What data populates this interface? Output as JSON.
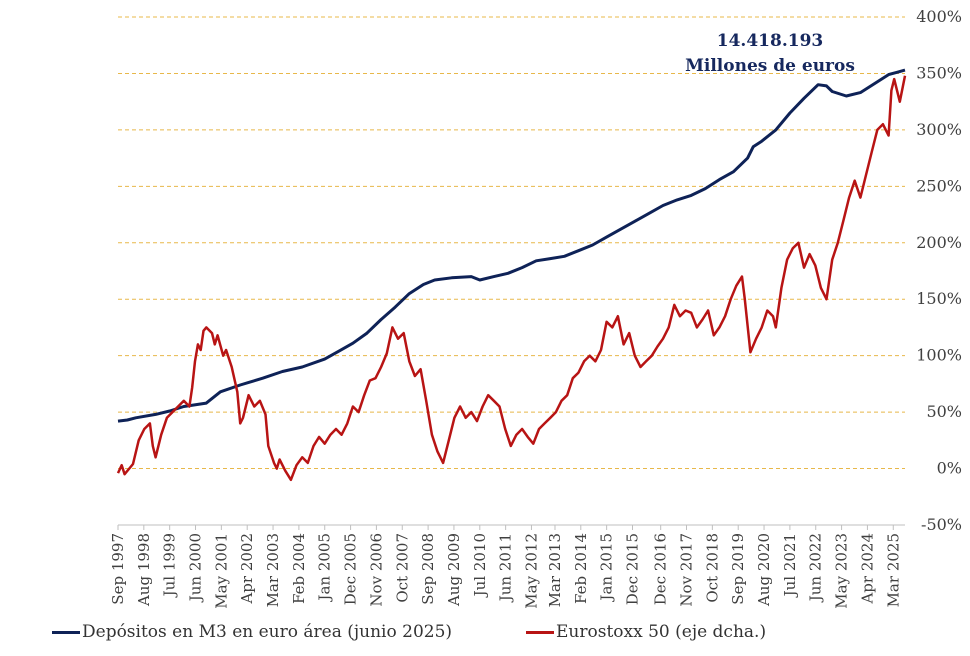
{
  "chart_data": {
    "type": "line",
    "title": "",
    "right_axis": {
      "ylim": [
        -50,
        400
      ],
      "ticks": [
        -50,
        0,
        50,
        100,
        150,
        200,
        250,
        300,
        350,
        400
      ],
      "tick_labels": [
        "-50%",
        "0%",
        "50%",
        "100%",
        "150%",
        "200%",
        "250%",
        "300%",
        "350%",
        "400%"
      ],
      "gridlines": true
    },
    "x": {
      "range": [
        1997.667,
        2025.583
      ],
      "tick_positions": [
        1997.667,
        1998.583,
        1999.5,
        2000.417,
        2001.333,
        2002.25,
        2003.167,
        2004.083,
        2005.0,
        2005.917,
        2006.833,
        2007.75,
        2008.667,
        2009.583,
        2010.5,
        2011.417,
        2012.333,
        2013.167,
        2014.083,
        2015.0,
        2015.917,
        2016.917,
        2017.833,
        2018.75,
        2019.667,
        2020.583,
        2021.5,
        2022.417,
        2023.333,
        2024.25,
        2025.167
      ],
      "tick_labels": [
        "Sep 1997",
        "Aug 1998",
        "Jul 1999",
        "Jun 2000",
        "May 2001",
        "Apr 2002",
        "Mar 2003",
        "Feb 2004",
        "Jan 2005",
        "Dec 2005",
        "Nov 2006",
        "Oct 2007",
        "Sep 2008",
        "Aug 2009",
        "Jul 2010",
        "Jun 2011",
        "May 2012",
        "Mar 2013",
        "Feb 2014",
        "Jan 2015",
        "Dec 2015",
        "Dec 2016",
        "Nov 2017",
        "Oct 2018",
        "Sep 2019",
        "Aug 2020",
        "Jul 2021",
        "Jun 2022",
        "May 2023",
        "Apr 2024",
        "Mar 2025"
      ]
    },
    "series": [
      {
        "name": "Depósitos en M3 en euro área (junio 2025)",
        "color": "#0e2257",
        "axis": "left (unlabeled)",
        "points": [
          [
            1997.667,
            42
          ],
          [
            1998.0,
            43
          ],
          [
            1998.3,
            45
          ],
          [
            1999.0,
            48
          ],
          [
            1999.5,
            51
          ],
          [
            2000.0,
            55
          ],
          [
            2000.8,
            58
          ],
          [
            2001.3,
            68
          ],
          [
            2002.0,
            74
          ],
          [
            2002.8,
            80
          ],
          [
            2003.5,
            86
          ],
          [
            2004.2,
            90
          ],
          [
            2005.0,
            97
          ],
          [
            2005.5,
            104
          ],
          [
            2006.0,
            111
          ],
          [
            2006.5,
            120
          ],
          [
            2007.0,
            132
          ],
          [
            2007.5,
            143
          ],
          [
            2008.0,
            155
          ],
          [
            2008.5,
            163
          ],
          [
            2008.9,
            167
          ],
          [
            2009.5,
            169
          ],
          [
            2010.2,
            170
          ],
          [
            2010.5,
            167
          ],
          [
            2011.0,
            170
          ],
          [
            2011.5,
            173
          ],
          [
            2012.0,
            178
          ],
          [
            2012.5,
            184
          ],
          [
            2013.0,
            186
          ],
          [
            2013.5,
            188
          ],
          [
            2014.0,
            193
          ],
          [
            2014.5,
            198
          ],
          [
            2015.0,
            205
          ],
          [
            2015.5,
            212
          ],
          [
            2016.0,
            219
          ],
          [
            2016.5,
            226
          ],
          [
            2017.0,
            233
          ],
          [
            2017.5,
            238
          ],
          [
            2018.0,
            242
          ],
          [
            2018.5,
            248
          ],
          [
            2019.0,
            256
          ],
          [
            2019.5,
            263
          ],
          [
            2020.0,
            275
          ],
          [
            2020.2,
            285
          ],
          [
            2020.5,
            290
          ],
          [
            2021.0,
            300
          ],
          [
            2021.5,
            315
          ],
          [
            2022.0,
            328
          ],
          [
            2022.5,
            340
          ],
          [
            2022.8,
            339
          ],
          [
            2023.0,
            334
          ],
          [
            2023.5,
            330
          ],
          [
            2024.0,
            333
          ],
          [
            2024.5,
            341
          ],
          [
            2025.0,
            349
          ],
          [
            2025.3,
            351
          ],
          [
            2025.583,
            353
          ]
        ]
      },
      {
        "name": "Eurostoxx 50 (eje dcha.)",
        "color": "#b81414",
        "axis": "right",
        "points": [
          [
            1997.667,
            -4
          ],
          [
            1997.8,
            3
          ],
          [
            1997.9,
            -5
          ],
          [
            1998.2,
            4
          ],
          [
            1998.4,
            25
          ],
          [
            1998.6,
            35
          ],
          [
            1998.8,
            40
          ],
          [
            1998.9,
            20
          ],
          [
            1999.0,
            10
          ],
          [
            1999.2,
            30
          ],
          [
            1999.4,
            45
          ],
          [
            1999.6,
            50
          ],
          [
            1999.8,
            55
          ],
          [
            2000.0,
            60
          ],
          [
            2000.2,
            55
          ],
          [
            2000.3,
            72
          ],
          [
            2000.4,
            95
          ],
          [
            2000.5,
            110
          ],
          [
            2000.6,
            105
          ],
          [
            2000.7,
            122
          ],
          [
            2000.8,
            125
          ],
          [
            2001.0,
            120
          ],
          [
            2001.1,
            110
          ],
          [
            2001.2,
            118
          ],
          [
            2001.4,
            100
          ],
          [
            2001.5,
            105
          ],
          [
            2001.7,
            90
          ],
          [
            2001.9,
            68
          ],
          [
            2002.0,
            40
          ],
          [
            2002.1,
            45
          ],
          [
            2002.3,
            65
          ],
          [
            2002.5,
            55
          ],
          [
            2002.7,
            60
          ],
          [
            2002.9,
            48
          ],
          [
            2003.0,
            20
          ],
          [
            2003.2,
            5
          ],
          [
            2003.3,
            0
          ],
          [
            2003.4,
            8
          ],
          [
            2003.6,
            -2
          ],
          [
            2003.8,
            -10
          ],
          [
            2004.0,
            3
          ],
          [
            2004.2,
            10
          ],
          [
            2004.4,
            5
          ],
          [
            2004.6,
            20
          ],
          [
            2004.8,
            28
          ],
          [
            2005.0,
            22
          ],
          [
            2005.2,
            30
          ],
          [
            2005.4,
            35
          ],
          [
            2005.6,
            30
          ],
          [
            2005.8,
            40
          ],
          [
            2006.0,
            55
          ],
          [
            2006.2,
            50
          ],
          [
            2006.4,
            65
          ],
          [
            2006.6,
            78
          ],
          [
            2006.8,
            80
          ],
          [
            2007.0,
            90
          ],
          [
            2007.2,
            102
          ],
          [
            2007.4,
            125
          ],
          [
            2007.6,
            115
          ],
          [
            2007.8,
            120
          ],
          [
            2008.0,
            95
          ],
          [
            2008.2,
            82
          ],
          [
            2008.4,
            88
          ],
          [
            2008.6,
            60
          ],
          [
            2008.8,
            30
          ],
          [
            2009.0,
            15
          ],
          [
            2009.2,
            5
          ],
          [
            2009.4,
            25
          ],
          [
            2009.6,
            45
          ],
          [
            2009.8,
            55
          ],
          [
            2010.0,
            45
          ],
          [
            2010.2,
            50
          ],
          [
            2010.4,
            42
          ],
          [
            2010.6,
            55
          ],
          [
            2010.8,
            65
          ],
          [
            2011.0,
            60
          ],
          [
            2011.2,
            55
          ],
          [
            2011.4,
            35
          ],
          [
            2011.6,
            20
          ],
          [
            2011.8,
            30
          ],
          [
            2012.0,
            35
          ],
          [
            2012.2,
            28
          ],
          [
            2012.4,
            22
          ],
          [
            2012.6,
            35
          ],
          [
            2012.8,
            40
          ],
          [
            2013.0,
            45
          ],
          [
            2013.2,
            50
          ],
          [
            2013.4,
            60
          ],
          [
            2013.6,
            65
          ],
          [
            2013.8,
            80
          ],
          [
            2014.0,
            85
          ],
          [
            2014.2,
            95
          ],
          [
            2014.4,
            100
          ],
          [
            2014.6,
            95
          ],
          [
            2014.8,
            105
          ],
          [
            2015.0,
            130
          ],
          [
            2015.2,
            125
          ],
          [
            2015.4,
            135
          ],
          [
            2015.6,
            110
          ],
          [
            2015.8,
            120
          ],
          [
            2016.0,
            100
          ],
          [
            2016.2,
            90
          ],
          [
            2016.4,
            95
          ],
          [
            2016.6,
            100
          ],
          [
            2016.8,
            108
          ],
          [
            2017.0,
            115
          ],
          [
            2017.2,
            125
          ],
          [
            2017.4,
            145
          ],
          [
            2017.6,
            135
          ],
          [
            2017.8,
            140
          ],
          [
            2018.0,
            138
          ],
          [
            2018.2,
            125
          ],
          [
            2018.4,
            132
          ],
          [
            2018.6,
            140
          ],
          [
            2018.8,
            118
          ],
          [
            2019.0,
            125
          ],
          [
            2019.2,
            135
          ],
          [
            2019.4,
            150
          ],
          [
            2019.6,
            162
          ],
          [
            2019.8,
            170
          ],
          [
            2019.9,
            150
          ],
          [
            2020.1,
            103
          ],
          [
            2020.3,
            115
          ],
          [
            2020.5,
            125
          ],
          [
            2020.7,
            140
          ],
          [
            2020.9,
            135
          ],
          [
            2021.0,
            125
          ],
          [
            2021.2,
            160
          ],
          [
            2021.4,
            185
          ],
          [
            2021.6,
            195
          ],
          [
            2021.8,
            200
          ],
          [
            2022.0,
            178
          ],
          [
            2022.2,
            190
          ],
          [
            2022.4,
            180
          ],
          [
            2022.6,
            160
          ],
          [
            2022.8,
            150
          ],
          [
            2023.0,
            185
          ],
          [
            2023.2,
            200
          ],
          [
            2023.4,
            220
          ],
          [
            2023.6,
            240
          ],
          [
            2023.8,
            255
          ],
          [
            2024.0,
            240
          ],
          [
            2024.2,
            260
          ],
          [
            2024.4,
            280
          ],
          [
            2024.6,
            300
          ],
          [
            2024.8,
            305
          ],
          [
            2025.0,
            295
          ],
          [
            2025.1,
            335
          ],
          [
            2025.2,
            345
          ],
          [
            2025.4,
            325
          ],
          [
            2025.583,
            348
          ]
        ]
      }
    ],
    "annotations": [
      "14.418.193",
      "Millones de euros"
    ],
    "legend": {
      "placement": "bottom",
      "entries": [
        "Depósitos en M3 en euro área (junio 2025)",
        "Eurostoxx 50 (eje dcha.)"
      ]
    },
    "gridline_color": "#e8b84a",
    "axis_color": "#bfbfbf"
  }
}
